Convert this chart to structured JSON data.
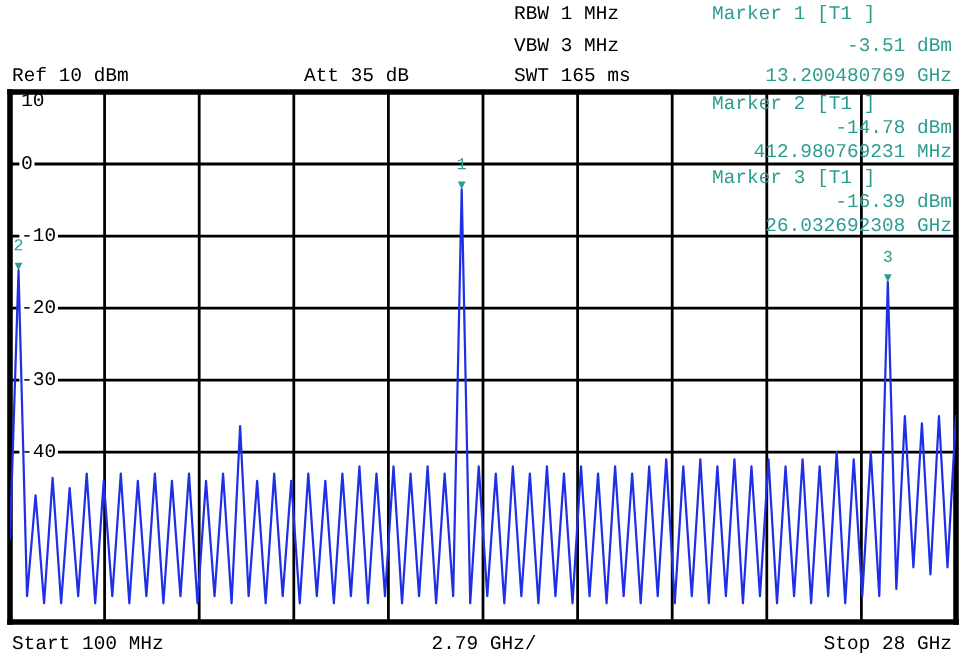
{
  "chart_data": {
    "type": "line",
    "annotations": [
      "RBW 1 MHz",
      "VBW 3 MHz",
      "SWT 165 ms",
      "Ref 10 dBm",
      "Att 35 dB",
      "Marker 1 [T1 ]",
      "-3.51 dBm",
      "13.200480769 GHz",
      "Marker 2 [T1 ]",
      "-14.78 dBm",
      "412.980769231 MHz",
      "Marker 3 [T1 ]",
      "-16.39 dBm",
      "26.032692308 GHz",
      "Start 100 MHz",
      "2.79 GHz/",
      "Stop 28 GHz",
      {
        "text": "1",
        "y": -3.51
      },
      {
        "text": "2",
        "y": -14.78
      },
      {
        "text": "3",
        "y": -16.39
      }
    ],
    "categories": [
      null,
      null,
      null,
      null,
      null,
      null,
      null,
      null,
      null,
      null,
      null,
      null,
      null,
      null,
      null,
      null,
      null,
      null,
      null,
      null,
      null,
      null,
      null,
      null,
      null,
      null,
      null,
      null,
      null,
      null,
      null,
      null,
      null,
      null,
      null,
      null,
      null,
      null,
      null,
      null,
      null,
      null,
      null,
      null,
      null,
      null,
      null,
      null,
      null,
      null,
      null,
      null,
      null,
      null,
      null,
      null,
      null,
      null,
      null,
      null,
      null,
      null,
      null,
      null,
      null,
      null,
      null,
      null,
      null,
      null,
      null,
      null,
      null,
      null,
      null,
      null,
      null,
      null,
      null,
      null,
      null,
      null,
      null,
      null,
      null,
      null,
      null,
      null,
      null,
      null,
      null,
      null,
      null,
      null,
      null,
      null,
      null,
      null,
      null,
      null,
      null,
      null,
      null,
      null,
      null,
      null,
      null,
      null,
      null,
      null,
      null,
      null
    ],
    "series": [
      {
        "color": "#1f2fe6",
        "values": [
          -52,
          -14.78,
          -60,
          -46,
          -61,
          -43.6,
          -61,
          -45,
          -60,
          -43,
          -61,
          -44,
          -60,
          -43,
          -61,
          -44,
          -60,
          -43,
          -61,
          -44,
          -60,
          -43,
          -61,
          -44,
          -60,
          -43,
          -61,
          -36.4,
          -60,
          -44,
          -61,
          -43,
          -60,
          -44,
          -61,
          -43,
          -60,
          -44,
          -61,
          -43,
          -60,
          -42,
          -61,
          -43,
          -60,
          -42,
          -61,
          -43,
          -60,
          -42,
          -61,
          -43,
          -60,
          -3.51,
          -61,
          -42,
          -60,
          -43,
          -61,
          -42,
          -60,
          -43,
          -61,
          -42,
          -60,
          -43,
          -61,
          -42,
          -60,
          -43,
          -61,
          -42,
          -60,
          -43,
          -61,
          -42,
          -60,
          -41,
          -61,
          -42,
          -60,
          -41,
          -61,
          -42,
          -60,
          -41,
          -61,
          -42,
          -60,
          -41,
          -61,
          -42,
          -60,
          -41,
          -61,
          -42,
          -60,
          -40,
          -61,
          -41,
          -60,
          -40,
          -60,
          -16.39,
          -59,
          -35,
          -56,
          -36,
          -57,
          -35,
          -56,
          -35
        ]
      }
    ],
    "ylim": [
      -63.6,
      10
    ],
    "yticks": [
      10,
      0,
      -10,
      -20,
      -30,
      -40
    ],
    "grid": true
  }
}
